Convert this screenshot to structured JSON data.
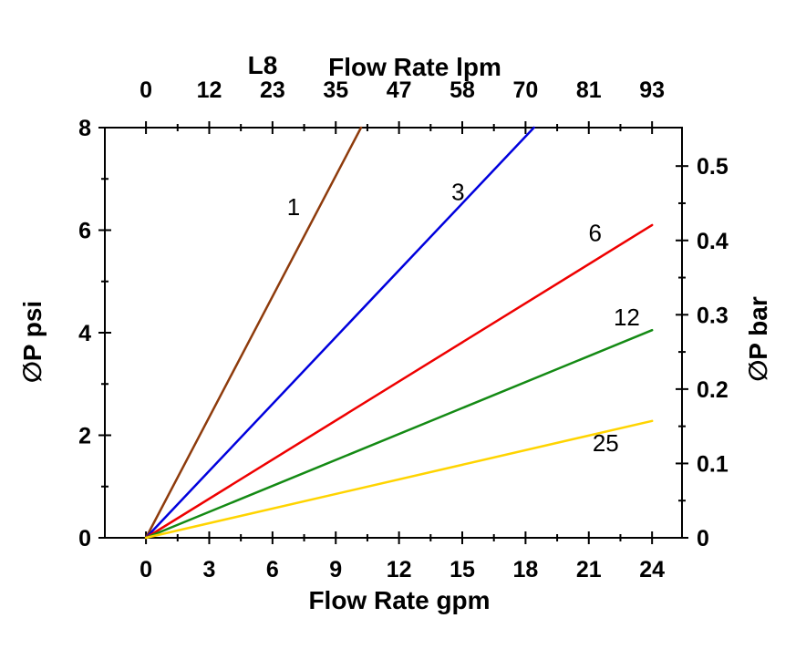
{
  "figure": {
    "title": "L8",
    "background": "#ffffff"
  },
  "chart_data": {
    "type": "line",
    "title": "L8",
    "grid": false,
    "legend": "labels-on-lines",
    "axes": {
      "top": {
        "label": "Flow Rate lpm",
        "tick_labels": [
          "0",
          "12",
          "23",
          "35",
          "47",
          "58",
          "70",
          "81",
          "93"
        ],
        "tick_positions_gpm": [
          0,
          3,
          6,
          9,
          12,
          15,
          18,
          21,
          24
        ]
      },
      "bottom": {
        "label": "Flow Rate gpm",
        "ticks": [
          0,
          3,
          6,
          9,
          12,
          15,
          18,
          21,
          24
        ],
        "range_gpm": [
          0,
          24
        ]
      },
      "left": {
        "label": "∅P psi",
        "ticks": [
          0,
          2,
          4,
          6,
          8
        ],
        "range_psi": [
          0,
          8
        ]
      },
      "right": {
        "label": "∅P bar",
        "ticks": [
          0,
          0.1,
          0.2,
          0.3,
          0.4,
          0.5
        ],
        "psi_per_bar": 14.5
      }
    },
    "series": [
      {
        "name": "1",
        "color": "#8e3b0c",
        "points_gpm_psi": [
          [
            0,
            0
          ],
          [
            10.2,
            8
          ]
        ],
        "label_at_gpm_psi": [
          7.0,
          6.45
        ]
      },
      {
        "name": "3",
        "color": "#0000dd",
        "points_gpm_psi": [
          [
            0,
            0
          ],
          [
            18.4,
            8
          ]
        ],
        "label_at_gpm_psi": [
          14.8,
          6.75
        ]
      },
      {
        "name": "6",
        "color": "#ee0000",
        "points_gpm_psi": [
          [
            0,
            0
          ],
          [
            24,
            6.1
          ]
        ],
        "label_at_gpm_psi": [
          21.3,
          5.95
        ]
      },
      {
        "name": "12",
        "color": "#148a14",
        "points_gpm_psi": [
          [
            0,
            0
          ],
          [
            24,
            4.05
          ]
        ],
        "label_at_gpm_psi": [
          22.8,
          4.3
        ]
      },
      {
        "name": "25",
        "color": "#ffd400",
        "points_gpm_psi": [
          [
            0,
            0
          ],
          [
            24,
            2.28
          ]
        ],
        "label_at_gpm_psi": [
          21.8,
          1.85
        ]
      }
    ]
  }
}
